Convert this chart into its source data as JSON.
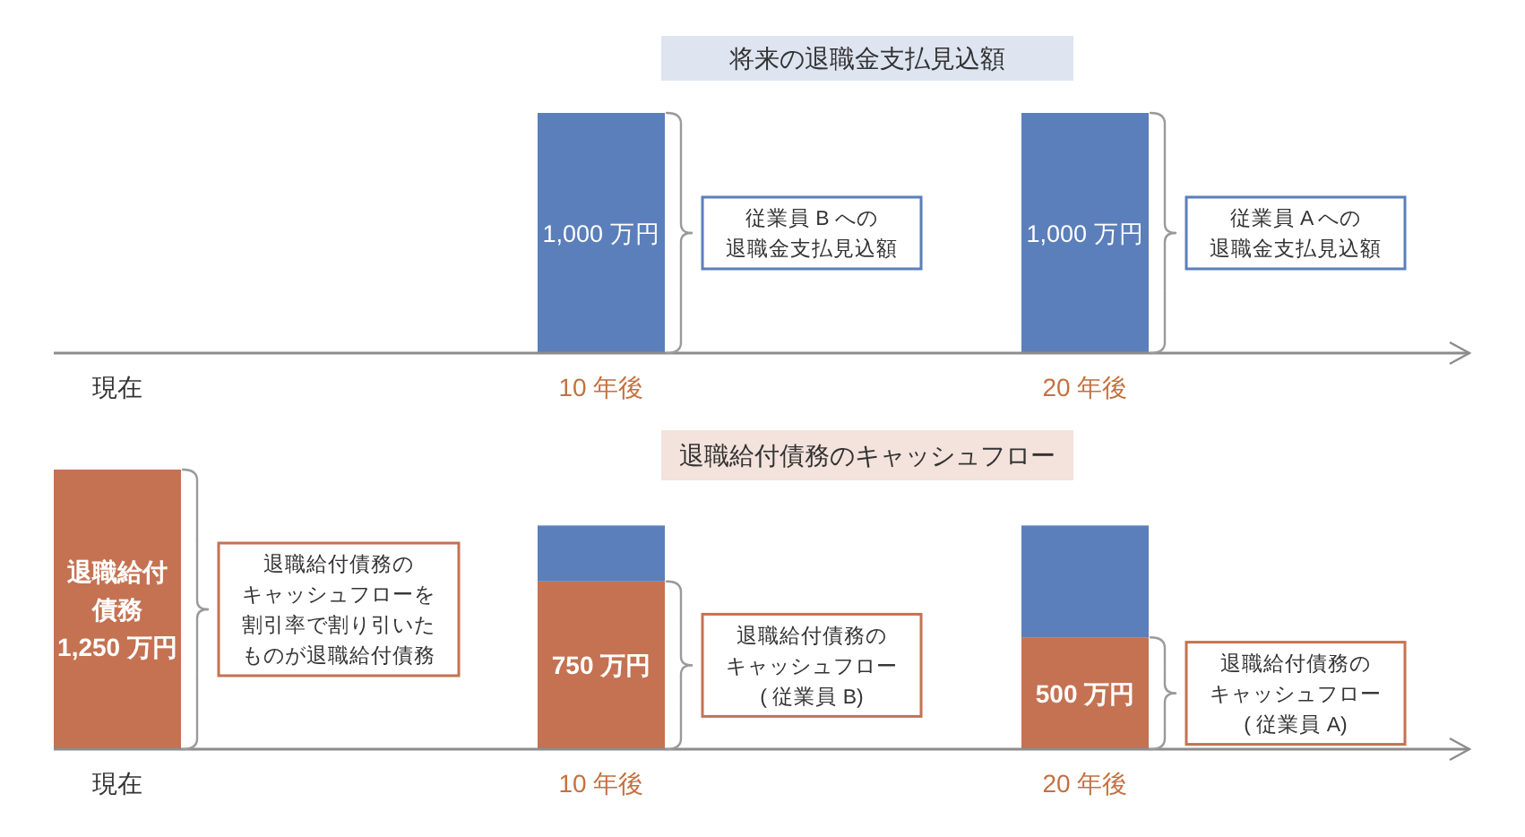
{
  "chart_data": [
    {
      "type": "bar",
      "title": "将来の退職金支払見込額",
      "categories": [
        "現在",
        "10 年後",
        "20 年後"
      ],
      "values": [
        null,
        1000,
        1000
      ],
      "color": "#5b7fba",
      "value_labels": [
        null,
        "1,000 万円",
        "1,000 万円"
      ],
      "tick_labels": "x",
      "annotations": [
        "従業員 B への退職金支払見込額",
        "従業員 A への退職金支払見込額"
      ]
    },
    {
      "type": "bar",
      "stacked": true,
      "title": "退職給付債務のキャッシュフロー",
      "categories": [
        "現在",
        "10 年後",
        "20 年後"
      ],
      "series": [
        {
          "color": "#c47252",
          "values": [
            1250,
            750,
            500
          ],
          "value_labels": [
            "退職給付債務1,250 万円",
            "750 万円",
            "500 万円"
          ]
        },
        {
          "color": "#5b7fba",
          "values": [
            null,
            250,
            500
          ]
        }
      ],
      "tick_labels": "x",
      "annotations": [
        "退職給付債務のキャッシュフローを割引率で割り引いたものが退職給付債務",
        "退職給付債務のキャッシュフロー( 従業員 B)",
        "退職給付債務のキャッシュフロー( 従業員 A)"
      ]
    }
  ]
}
